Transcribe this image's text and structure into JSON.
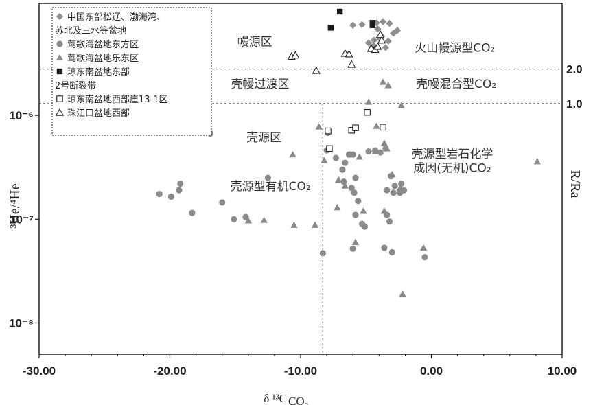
{
  "chart_data": {
    "type": "scatter",
    "xlabel": "δ ¹³C",
    "xlabel_sub": "CO₂",
    "ylabel": "³He/⁴He",
    "y2label": "R/Ra",
    "xlim": [
      -30,
      10
    ],
    "ylim": [
      5e-09,
      1.2e-05
    ],
    "yscale": "log",
    "x_ticks": [
      "-30.00",
      "-20.00",
      "-10.00",
      "0.00",
      "10.00"
    ],
    "x_tick_values": [
      -30,
      -20,
      -10,
      0,
      10
    ],
    "y_ticks": [
      "10⁻⁶",
      "10⁻⁷",
      "10⁻⁸"
    ],
    "y_tick_values": [
      1e-06,
      1e-07,
      1e-08
    ],
    "ref_lines": [
      {
        "label": "2.0",
        "y": 2.8e-06
      },
      {
        "label": "1.0",
        "y": 1.3e-06
      },
      {
        "x": -8.3
      }
    ],
    "zones": [
      {
        "label": "幔源区",
        "x": -13.5,
        "y": 4.7e-06
      },
      {
        "label": "火山幔源型CO₂",
        "x": 1.8,
        "y": 4.1e-06
      },
      {
        "label": "壳幔过渡区",
        "x": -13.1,
        "y": 1.85e-06
      },
      {
        "label": "壳幔混合型CO₂",
        "x": 1.9,
        "y": 1.85e-06
      },
      {
        "label": "壳源区",
        "x": -12.8,
        "y": 5.6e-07
      },
      {
        "label": "壳源型岩石化学",
        "x": 1.6,
        "y": 3.9e-07
      },
      {
        "label": "成因(无机)CO₂",
        "x": 1.6,
        "y": 2.85e-07
      },
      {
        "label": "壳源型有机CO₂",
        "x": -12.3,
        "y": 1.9e-07
      }
    ],
    "legend": {
      "placement": "top-left"
    },
    "series": [
      {
        "name": "中国东部松辽、渤海湾、苏北及三水等盆地",
        "marker": "diamond",
        "fill": "#8f8f8f",
        "x": [
          -6.0,
          -5.3,
          -4.2,
          -3.7,
          -3.2,
          -2.6,
          -3.8,
          -4.4,
          -4.0,
          -4.4,
          -3.5,
          -4.8,
          -3.3,
          -2.9,
          -4.1
        ],
        "y": [
          7.4e-06,
          7.5e-06,
          7.8e-06,
          8e-06,
          7.7e-06,
          6.6e-06,
          5.8e-06,
          5.3e-06,
          5.6e-06,
          4.7e-06,
          4.5e-06,
          5e-06,
          5.2e-06,
          6.2e-06,
          6.8e-06
        ]
      },
      {
        "name": "莺歌海盆地东方区",
        "marker": "circle",
        "fill": "#8a8a8a",
        "x": [
          -16.9,
          -12.5,
          -16.0,
          -18.3,
          -19.2,
          -20.8,
          -19.9,
          -19.3,
          -15.1,
          -14.2,
          -8.3,
          -8.0,
          -7.9,
          -7.3,
          -6.8,
          -6.6,
          -6.3,
          -6.0,
          -5.8,
          -6.1,
          -5.9,
          -6.7,
          -5.6,
          -5.3,
          -4.8,
          -4.3,
          -3.9,
          -3.5,
          -3.1,
          -2.8,
          -2.3,
          -2.1,
          -3.4,
          -2.9,
          -2.4,
          -3.2,
          -3.6,
          -3.4,
          -3.0,
          -5.8,
          -5.1,
          -6.0,
          -0.5
        ],
        "y": [
          6.7e-07,
          2.5e-07,
          1.45e-07,
          1.15e-07,
          2.2e-07,
          1.75e-07,
          1.65e-07,
          1.9e-07,
          1e-07,
          1.05e-07,
          4.7e-08,
          4.6e-07,
          6.8e-07,
          3.9e-07,
          3e-07,
          3.5e-07,
          4.2e-07,
          4.2e-07,
          2.5e-07,
          2e-07,
          1.8e-07,
          2.3e-07,
          1.5e-07,
          9e-08,
          4.5e-07,
          4.6e-07,
          4.4e-07,
          4.8e-07,
          2.6e-07,
          2.1e-07,
          2.2e-07,
          1.9e-07,
          1.9e-07,
          1.8e-07,
          1.8e-07,
          9.5e-08,
          5.3e-08,
          1.1e-07,
          4.8e-08,
          1.1e-07,
          8.5e-08,
          5.2e-08,
          4.3e-08
        ]
      },
      {
        "name": "莺歌海盆地乐东区",
        "marker": "triangle",
        "fill": "#8a8a8a",
        "x": [
          -4.6,
          -3.7,
          -3.3,
          -2.3,
          -4.8,
          -8.6,
          -10.6,
          -8.2,
          -6.2,
          -5.5,
          -4.2,
          -3.6,
          -4.3,
          -3.4,
          -7.1,
          -6.6,
          -3.0,
          -2.4,
          -7.2,
          -5.2,
          -3.6,
          -0.6,
          -2.2,
          -5.8,
          -10.5,
          -8.9,
          -12.8,
          -14.0,
          8.1
        ],
        "y": [
          4.6e-06,
          2.1e-06,
          1.95e-06,
          1.25e-06,
          1.35e-06,
          7.8e-07,
          4.2e-07,
          3.7e-07,
          4.2e-07,
          4e-07,
          7.9e-07,
          5.4e-07,
          4.5e-07,
          4.8e-07,
          2.4e-07,
          2.1e-07,
          2.7e-07,
          2e-07,
          1.3e-07,
          1.2e-07,
          1.2e-07,
          5.3e-08,
          1.9e-08,
          6e-08,
          8.8e-08,
          8.8e-08,
          9.8e-08,
          9.7e-08,
          3.6e-07
        ]
      },
      {
        "name": "琼东南盆地东部2号断裂带",
        "marker": "square",
        "fill": "#1a1a1a",
        "x": [
          -7.0,
          -7.7,
          -4.5,
          -4.5,
          -4.4
        ],
        "y": [
          1e-05,
          7e-06,
          7.8e-06,
          7.4e-06,
          4.3e-06
        ]
      },
      {
        "name": "琼东南盆地西部崖13-1区",
        "marker": "square-open",
        "fill": "none",
        "x": [
          -7.9,
          -7.8,
          -6.1,
          -5.8,
          -4.9,
          -3.7
        ],
        "y": [
          7.1e-07,
          4.8e-07,
          7.2e-07,
          7.6e-07,
          1.07e-06,
          7.7e-07
        ]
      },
      {
        "name": "珠江口盆地西部",
        "marker": "triangle-open",
        "fill": "none",
        "x": [
          -10.7,
          -10.4,
          -8.8,
          -6.6,
          -6.3,
          -6.1,
          -4.6,
          -4.3,
          -3.9,
          -3.8,
          -4.1
        ],
        "y": [
          3.7e-06,
          3.8e-06,
          2.7e-06,
          3.95e-06,
          3.9e-06,
          3.1e-06,
          4.4e-06,
          4.3e-06,
          6e-06,
          5.3e-06,
          4.6e-06
        ]
      }
    ]
  }
}
